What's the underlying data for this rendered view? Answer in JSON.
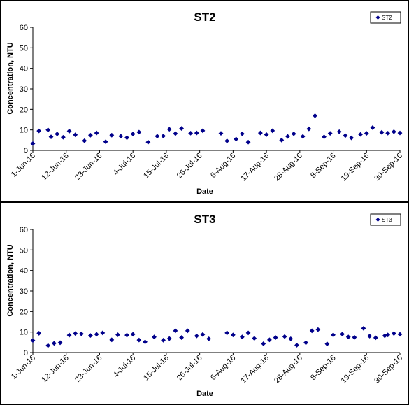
{
  "colors": {
    "marker": "#00008B",
    "axis": "#000000",
    "background": "#ffffff"
  },
  "chart_data": [
    {
      "type": "scatter",
      "title": "ST2",
      "xlabel": "Date",
      "ylabel": "Concentration, NTU",
      "ylim": [
        0,
        60
      ],
      "yticks": [
        "0",
        "10",
        "20",
        "30",
        "40",
        "50",
        "60"
      ],
      "xlim": [
        "2016-06-01",
        "2016-09-30"
      ],
      "xticks": [
        {
          "label": "1-Jun-16",
          "date": "2016-06-01"
        },
        {
          "label": "12-Jun-16",
          "date": "2016-06-12"
        },
        {
          "label": "23-Jun-16",
          "date": "2016-06-23"
        },
        {
          "label": "4-Jul-16",
          "date": "2016-07-04"
        },
        {
          "label": "15-Jul-16",
          "date": "2016-07-15"
        },
        {
          "label": "26-Jul-16",
          "date": "2016-07-26"
        },
        {
          "label": "6-Aug-16",
          "date": "2016-08-06"
        },
        {
          "label": "17-Aug-16",
          "date": "2016-08-17"
        },
        {
          "label": "28-Aug-16",
          "date": "2016-08-28"
        },
        {
          "label": "8-Sep-16",
          "date": "2016-09-08"
        },
        {
          "label": "19-Sep-16",
          "date": "2016-09-19"
        },
        {
          "label": "30-Sep-16",
          "date": "2016-09-30"
        }
      ],
      "grid": false,
      "legend": "top-right",
      "series": [
        {
          "name": "ST2",
          "points": [
            {
              "x": "2016-06-01",
              "y": 3.3
            },
            {
              "x": "2016-06-03",
              "y": 9.5
            },
            {
              "x": "2016-06-06",
              "y": 10
            },
            {
              "x": "2016-06-07",
              "y": 6.6
            },
            {
              "x": "2016-06-09",
              "y": 8
            },
            {
              "x": "2016-06-11",
              "y": 6.4
            },
            {
              "x": "2016-06-13",
              "y": 9.4
            },
            {
              "x": "2016-06-15",
              "y": 7.6
            },
            {
              "x": "2016-06-18",
              "y": 4.7
            },
            {
              "x": "2016-06-20",
              "y": 7.4
            },
            {
              "x": "2016-06-22",
              "y": 8.5
            },
            {
              "x": "2016-06-25",
              "y": 4.2
            },
            {
              "x": "2016-06-27",
              "y": 7.4
            },
            {
              "x": "2016-06-30",
              "y": 6.9
            },
            {
              "x": "2016-07-02",
              "y": 6.2
            },
            {
              "x": "2016-07-04",
              "y": 8
            },
            {
              "x": "2016-07-06",
              "y": 8.9
            },
            {
              "x": "2016-07-09",
              "y": 4
            },
            {
              "x": "2016-07-12",
              "y": 6.9
            },
            {
              "x": "2016-07-14",
              "y": 7
            },
            {
              "x": "2016-07-16",
              "y": 10.3
            },
            {
              "x": "2016-07-18",
              "y": 8.2
            },
            {
              "x": "2016-07-20",
              "y": 10.7
            },
            {
              "x": "2016-07-23",
              "y": 8.4
            },
            {
              "x": "2016-07-25",
              "y": 8.5
            },
            {
              "x": "2016-07-27",
              "y": 9.6
            },
            {
              "x": "2016-08-02",
              "y": 8.3
            },
            {
              "x": "2016-08-04",
              "y": 4.6
            },
            {
              "x": "2016-08-07",
              "y": 5.5
            },
            {
              "x": "2016-08-09",
              "y": 8.1
            },
            {
              "x": "2016-08-11",
              "y": 4
            },
            {
              "x": "2016-08-15",
              "y": 8.5
            },
            {
              "x": "2016-08-17",
              "y": 7.7
            },
            {
              "x": "2016-08-19",
              "y": 9.6
            },
            {
              "x": "2016-08-22",
              "y": 5
            },
            {
              "x": "2016-08-24",
              "y": 6.8
            },
            {
              "x": "2016-08-26",
              "y": 8.1
            },
            {
              "x": "2016-08-29",
              "y": 6.8
            },
            {
              "x": "2016-08-31",
              "y": 10.5
            },
            {
              "x": "2016-09-02",
              "y": 16.9
            },
            {
              "x": "2016-09-05",
              "y": 6.6
            },
            {
              "x": "2016-09-07",
              "y": 8.3
            },
            {
              "x": "2016-09-10",
              "y": 9.1
            },
            {
              "x": "2016-09-12",
              "y": 7.2
            },
            {
              "x": "2016-09-14",
              "y": 6.1
            },
            {
              "x": "2016-09-17",
              "y": 7.8
            },
            {
              "x": "2016-09-19",
              "y": 8.3
            },
            {
              "x": "2016-09-21",
              "y": 11.1
            },
            {
              "x": "2016-09-24",
              "y": 8.8
            },
            {
              "x": "2016-09-26",
              "y": 8.4
            },
            {
              "x": "2016-09-28",
              "y": 9.1
            },
            {
              "x": "2016-09-30",
              "y": 8.5
            }
          ]
        }
      ]
    },
    {
      "type": "scatter",
      "title": "ST3",
      "xlabel": "Date",
      "ylabel": "Concentration, NTU",
      "ylim": [
        0,
        60
      ],
      "yticks": [
        "0",
        "10",
        "20",
        "30",
        "40",
        "50",
        "60"
      ],
      "xlim": [
        "2016-06-01",
        "2016-09-30"
      ],
      "xticks": [
        {
          "label": "1-Jun-16",
          "date": "2016-06-01"
        },
        {
          "label": "12-Jun-16",
          "date": "2016-06-12"
        },
        {
          "label": "23-Jun-16",
          "date": "2016-06-23"
        },
        {
          "label": "4-Jul-16",
          "date": "2016-07-04"
        },
        {
          "label": "15-Jul-16",
          "date": "2016-07-15"
        },
        {
          "label": "26-Jul-16",
          "date": "2016-07-26"
        },
        {
          "label": "6-Aug-16",
          "date": "2016-08-06"
        },
        {
          "label": "17-Aug-16",
          "date": "2016-08-17"
        },
        {
          "label": "28-Aug-16",
          "date": "2016-08-28"
        },
        {
          "label": "8-Sep-16",
          "date": "2016-09-08"
        },
        {
          "label": "19-Sep-16",
          "date": "2016-09-19"
        },
        {
          "label": "30-Sep-16",
          "date": "2016-09-30"
        }
      ],
      "grid": false,
      "legend": "top-right",
      "series": [
        {
          "name": "ST3",
          "points": [
            {
              "x": "2016-06-01",
              "y": 5.9
            },
            {
              "x": "2016-06-03",
              "y": 9.4
            },
            {
              "x": "2016-06-06",
              "y": 3.4
            },
            {
              "x": "2016-06-08",
              "y": 4.5
            },
            {
              "x": "2016-06-10",
              "y": 4.8
            },
            {
              "x": "2016-06-13",
              "y": 8.5
            },
            {
              "x": "2016-06-15",
              "y": 9.3
            },
            {
              "x": "2016-06-17",
              "y": 9.1
            },
            {
              "x": "2016-06-20",
              "y": 8.3
            },
            {
              "x": "2016-06-22",
              "y": 8.9
            },
            {
              "x": "2016-06-24",
              "y": 9.6
            },
            {
              "x": "2016-06-27",
              "y": 6.2
            },
            {
              "x": "2016-06-29",
              "y": 8.7
            },
            {
              "x": "2016-07-02",
              "y": 8.5
            },
            {
              "x": "2016-07-04",
              "y": 8.9
            },
            {
              "x": "2016-07-06",
              "y": 6.1
            },
            {
              "x": "2016-07-08",
              "y": 5.2
            },
            {
              "x": "2016-07-11",
              "y": 7.6
            },
            {
              "x": "2016-07-14",
              "y": 6
            },
            {
              "x": "2016-07-16",
              "y": 6.8
            },
            {
              "x": "2016-07-18",
              "y": 10.6
            },
            {
              "x": "2016-07-20",
              "y": 7.3
            },
            {
              "x": "2016-07-22",
              "y": 10.6
            },
            {
              "x": "2016-07-25",
              "y": 8.1
            },
            {
              "x": "2016-07-27",
              "y": 8.8
            },
            {
              "x": "2016-07-29",
              "y": 6.7
            },
            {
              "x": "2016-08-04",
              "y": 9.6
            },
            {
              "x": "2016-08-06",
              "y": 8.6
            },
            {
              "x": "2016-08-09",
              "y": 7.6
            },
            {
              "x": "2016-08-11",
              "y": 9.6
            },
            {
              "x": "2016-08-13",
              "y": 6.9
            },
            {
              "x": "2016-08-16",
              "y": 4.3
            },
            {
              "x": "2016-08-18",
              "y": 6.2
            },
            {
              "x": "2016-08-20",
              "y": 7.3
            },
            {
              "x": "2016-08-23",
              "y": 7.8
            },
            {
              "x": "2016-08-25",
              "y": 6.7
            },
            {
              "x": "2016-08-27",
              "y": 3.6
            },
            {
              "x": "2016-08-30",
              "y": 4.8
            },
            {
              "x": "2016-09-01",
              "y": 10.6
            },
            {
              "x": "2016-09-03",
              "y": 11.2
            },
            {
              "x": "2016-09-06",
              "y": 4.2
            },
            {
              "x": "2016-09-08",
              "y": 8.6
            },
            {
              "x": "2016-09-11",
              "y": 9
            },
            {
              "x": "2016-09-13",
              "y": 7.6
            },
            {
              "x": "2016-09-15",
              "y": 7.4
            },
            {
              "x": "2016-09-18",
              "y": 11.8
            },
            {
              "x": "2016-09-20",
              "y": 8
            },
            {
              "x": "2016-09-22",
              "y": 7.2
            },
            {
              "x": "2016-09-25",
              "y": 8.2
            },
            {
              "x": "2016-09-26",
              "y": 8.6
            },
            {
              "x": "2016-09-28",
              "y": 9.3
            },
            {
              "x": "2016-09-30",
              "y": 8.9
            }
          ]
        }
      ]
    }
  ]
}
